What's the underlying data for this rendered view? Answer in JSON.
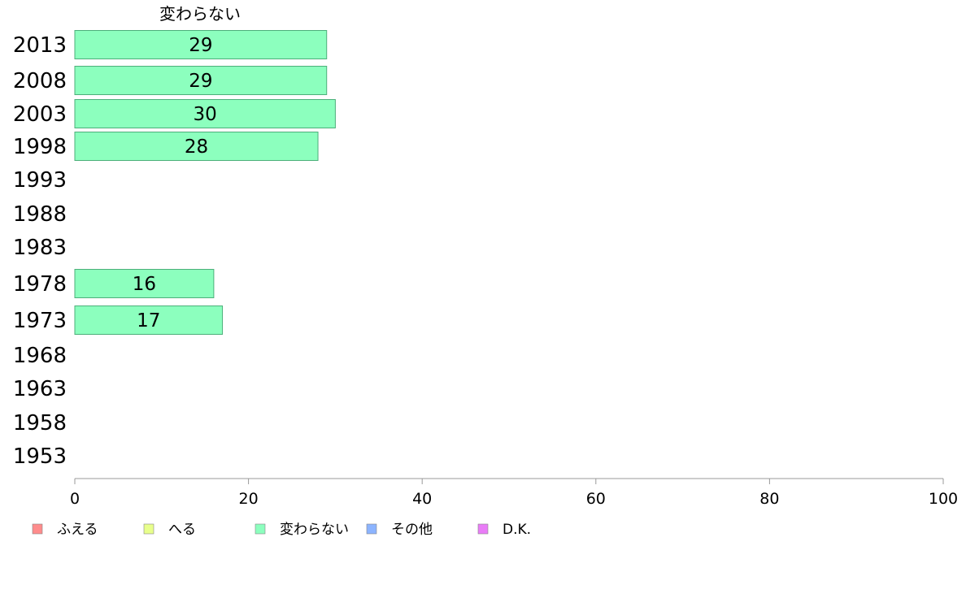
{
  "chart_data": {
    "type": "bar",
    "orientation": "horizontal",
    "column_title": "変わらない",
    "categories": [
      "2013",
      "2008",
      "2003",
      "1998",
      "1993",
      "1988",
      "1983",
      "1978",
      "1973",
      "1968",
      "1963",
      "1958",
      "1953"
    ],
    "series": [
      {
        "name": "変わらない",
        "values": [
          29,
          29,
          30,
          28,
          null,
          null,
          null,
          16,
          17,
          null,
          null,
          null,
          null
        ]
      }
    ],
    "value_labels": [
      "29",
      "29",
      "30",
      "28",
      "",
      "",
      "",
      "16",
      "17",
      "",
      "",
      "",
      ""
    ],
    "xlim": [
      0,
      100
    ],
    "xticks": [
      "0",
      "20",
      "40",
      "60",
      "80",
      "100"
    ],
    "legend_position": "bottom-left",
    "legend": [
      {
        "label": "ふえる",
        "color": "#ff8c8c"
      },
      {
        "label": "へる",
        "color": "#e8ff8c"
      },
      {
        "label": "変わらない",
        "color": "#8cffbe"
      },
      {
        "label": "その他",
        "color": "#8cb4ff"
      },
      {
        "label": "D.K.",
        "color": "#e97cf7"
      }
    ],
    "bar_color": "#8cffbe",
    "bar_stroke": "#4caf7a",
    "grid": false
  }
}
